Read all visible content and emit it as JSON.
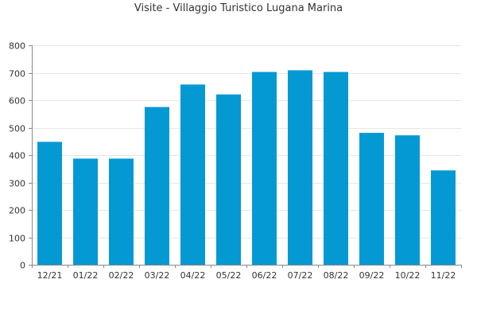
{
  "chart_data": {
    "type": "bar",
    "title": "Visite - Villaggio Turistico Lugana Marina",
    "xlabel": "",
    "ylabel": "",
    "categories": [
      "12/21",
      "01/22",
      "02/22",
      "03/22",
      "04/22",
      "05/22",
      "06/22",
      "07/22",
      "08/22",
      "09/22",
      "10/22",
      "11/22"
    ],
    "values": [
      448,
      387,
      387,
      575,
      657,
      621,
      703,
      709,
      703,
      481,
      472,
      344
    ],
    "ylim": [
      0,
      800
    ],
    "yticks": [
      0,
      100,
      200,
      300,
      400,
      500,
      600,
      700,
      800
    ],
    "grid": true,
    "legend": "none",
    "colors": {
      "bar": "#0599d3",
      "grid": "#e6e6e6",
      "axis": "#888888",
      "text": "#333333"
    }
  }
}
